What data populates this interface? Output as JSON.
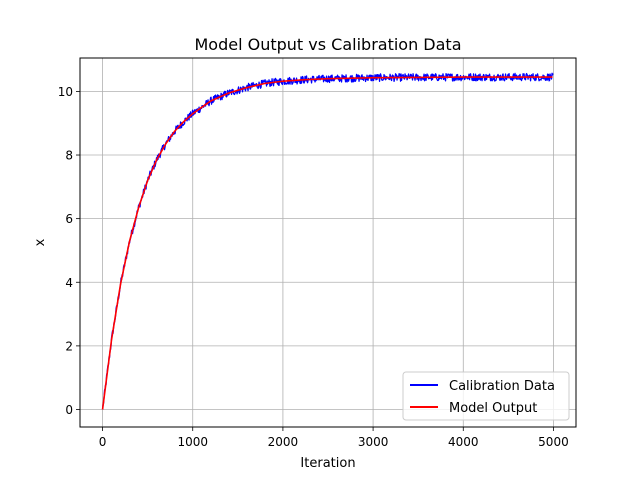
{
  "chart_data": {
    "type": "line",
    "title": "Model Output vs Calibration Data",
    "xlabel": "Iteration",
    "ylabel": "x",
    "xlim": [
      -250,
      5250
    ],
    "ylim": [
      -0.55,
      11.05
    ],
    "xticks": [
      0,
      1000,
      2000,
      3000,
      4000,
      5000
    ],
    "xtick_labels": [
      "0",
      "1000",
      "2000",
      "3000",
      "4000",
      "5000"
    ],
    "yticks": [
      0,
      2,
      4,
      6,
      8,
      10
    ],
    "ytick_labels": [
      "0",
      "2",
      "4",
      "6",
      "8",
      "10"
    ],
    "grid": true,
    "legend_position": "lower-right",
    "series": [
      {
        "name": "Calibration Data",
        "color": "#0000ff",
        "style": "noisy",
        "x": [
          0,
          100,
          200,
          300,
          400,
          500,
          600,
          700,
          800,
          900,
          1000,
          1200,
          1400,
          1600,
          1800,
          2000,
          2250,
          2500,
          3000,
          3500,
          4000,
          4500,
          5000
        ],
        "values": [
          0.0,
          2.2,
          3.95,
          5.3,
          6.35,
          7.2,
          7.85,
          8.35,
          8.75,
          9.05,
          9.3,
          9.7,
          9.95,
          10.12,
          10.25,
          10.32,
          10.37,
          10.4,
          10.43,
          10.44,
          10.45,
          10.45,
          10.45
        ],
        "noise_amplitude": 0.12
      },
      {
        "name": "Model Output",
        "color": "#ff0000",
        "style": "smooth",
        "x": [
          0,
          100,
          200,
          300,
          400,
          500,
          600,
          700,
          800,
          900,
          1000,
          1200,
          1400,
          1600,
          1800,
          2000,
          2250,
          2500,
          3000,
          3500,
          4000,
          4500,
          5000
        ],
        "values": [
          0.0,
          2.2,
          3.95,
          5.3,
          6.35,
          7.2,
          7.85,
          8.35,
          8.75,
          9.05,
          9.3,
          9.7,
          9.95,
          10.12,
          10.25,
          10.32,
          10.37,
          10.4,
          10.43,
          10.44,
          10.45,
          10.45,
          10.45
        ]
      }
    ]
  }
}
